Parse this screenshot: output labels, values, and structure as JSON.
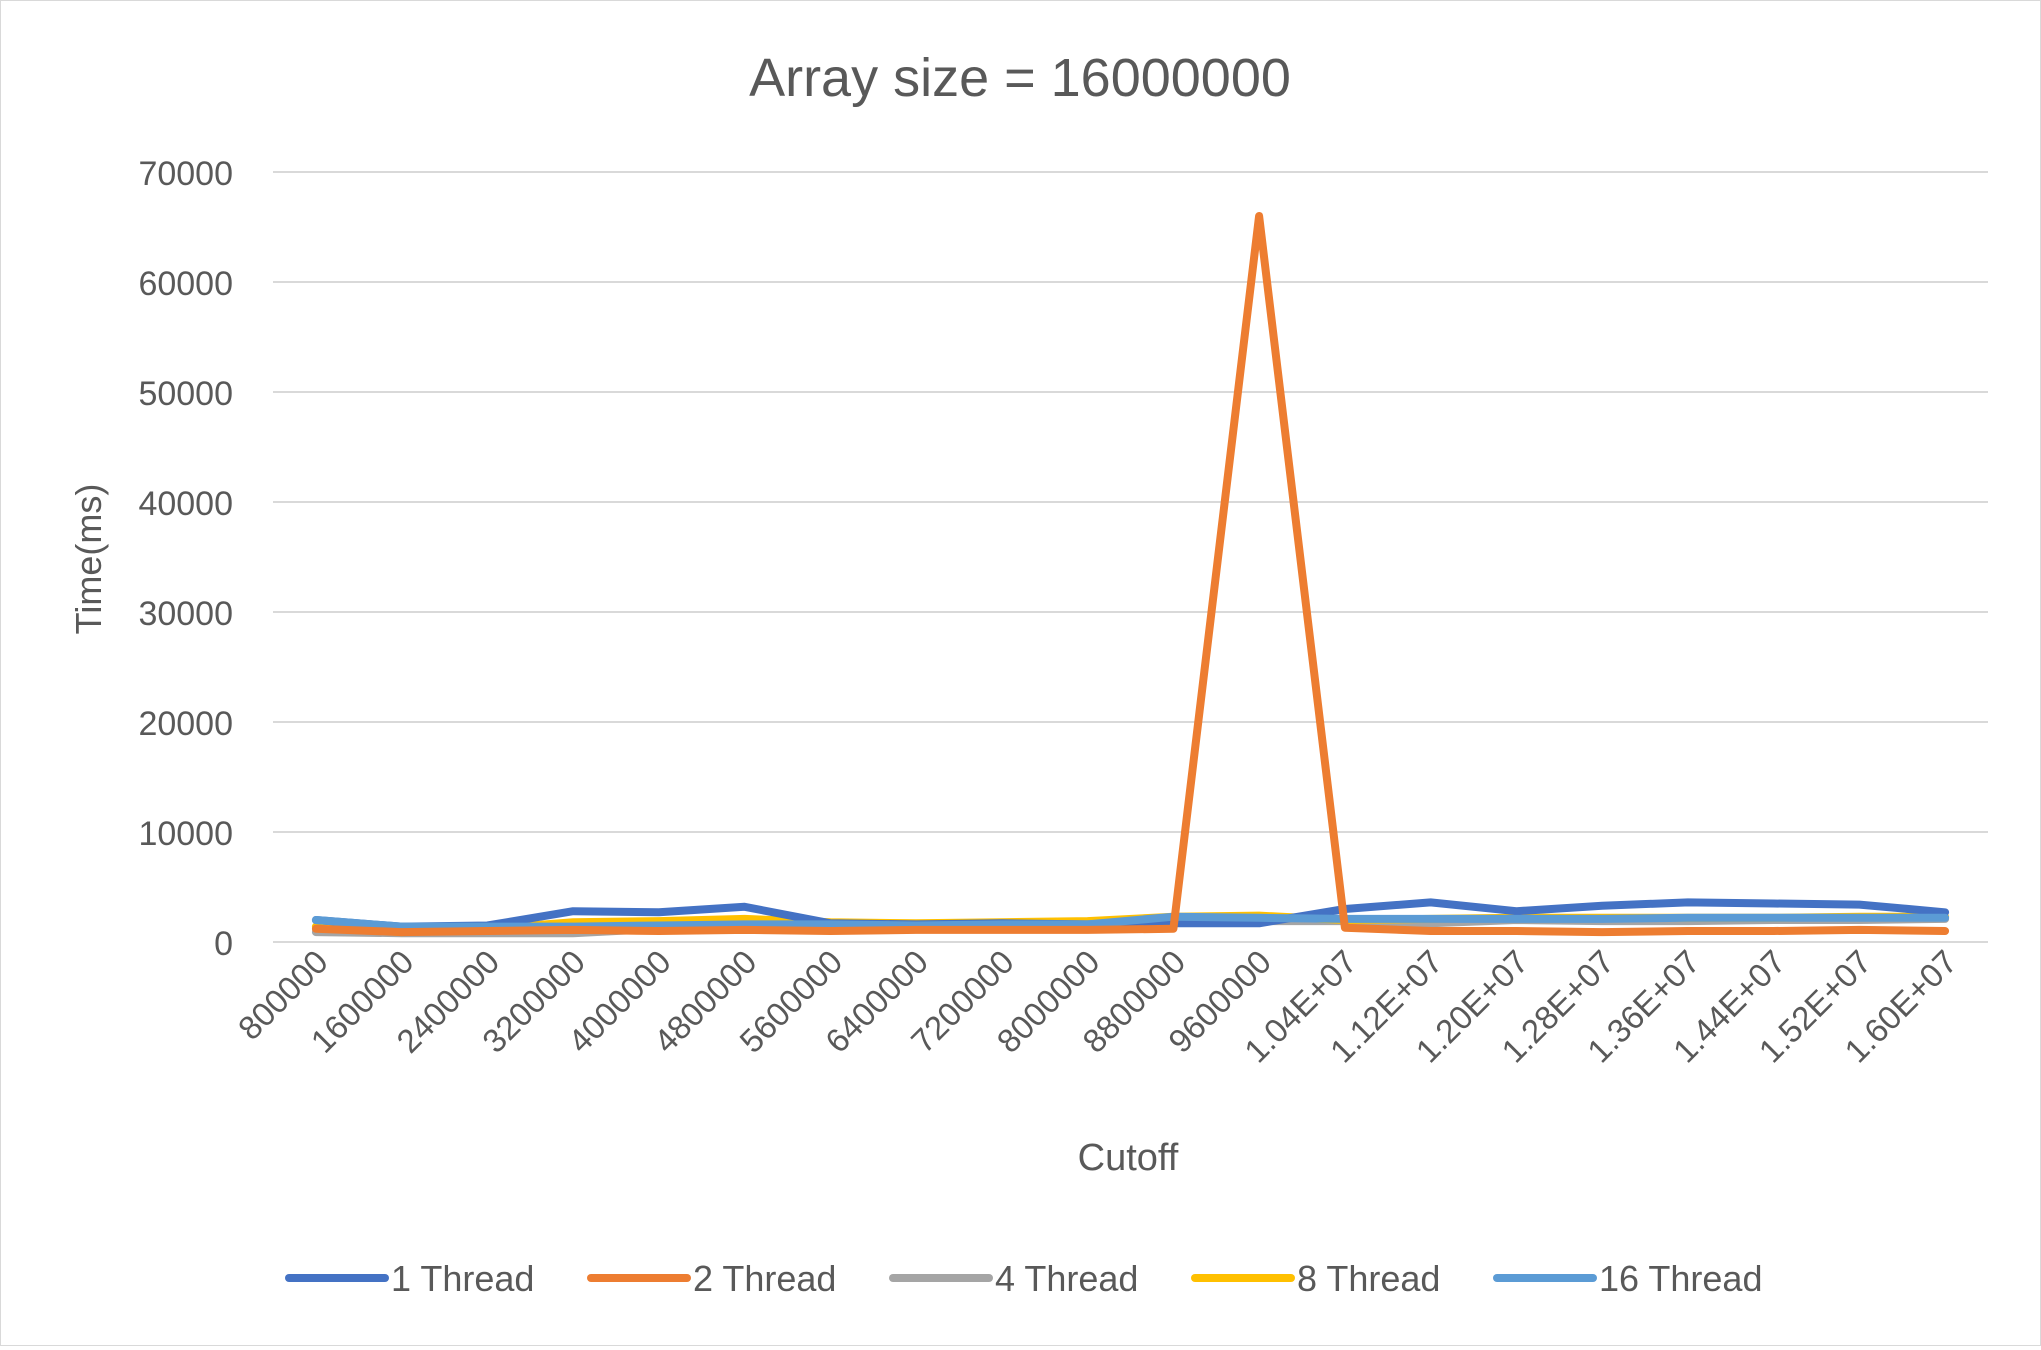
{
  "chart_data": {
    "type": "line",
    "title": "Array size = 16000000",
    "xlabel": "Cutoff",
    "ylabel": "Time(ms)",
    "ylim": [
      0,
      70000
    ],
    "yticks": [
      "0",
      "10000",
      "20000",
      "30000",
      "40000",
      "50000",
      "60000",
      "70000"
    ],
    "ytick_values": [
      0,
      10000,
      20000,
      30000,
      40000,
      50000,
      60000,
      70000
    ],
    "grid": true,
    "legend_position": "bottom",
    "categories": [
      "800000",
      "1600000",
      "2400000",
      "3200000",
      "4000000",
      "4800000",
      "5600000",
      "6400000",
      "7200000",
      "8000000",
      "8800000",
      "9600000",
      "1.04E+07",
      "1.12E+07",
      "1.20E+07",
      "1.28E+07",
      "1.36E+07",
      "1.44E+07",
      "1.52E+07",
      "1.60E+07"
    ],
    "series": [
      {
        "name": "1 Thread",
        "color": "#4472C4",
        "values": [
          2000,
          1400,
          1500,
          2800,
          2700,
          3200,
          1700,
          1600,
          1700,
          1600,
          1700,
          1700,
          3000,
          3600,
          2800,
          3300,
          3600,
          3500,
          3400,
          2700
        ]
      },
      {
        "name": "2 Thread",
        "color": "#ED7D31",
        "values": [
          1200,
          900,
          1000,
          1100,
          1000,
          1100,
          1000,
          1100,
          1100,
          1100,
          1200,
          66000,
          1300,
          1000,
          1000,
          900,
          1000,
          1000,
          1100,
          1000
        ]
      },
      {
        "name": "4 Thread",
        "color": "#A5A5A5",
        "values": [
          900,
          800,
          800,
          800,
          1200,
          1400,
          1400,
          1400,
          1500,
          1500,
          1800,
          1900,
          1900,
          1700,
          2000,
          1900,
          1900,
          2000,
          2000,
          2100
        ]
      },
      {
        "name": "8 Thread",
        "color": "#FFC000",
        "values": [
          1400,
          900,
          1200,
          1800,
          1900,
          2100,
          1800,
          1700,
          1800,
          1900,
          2300,
          2400,
          2000,
          2100,
          2200,
          2200,
          2200,
          2200,
          2300,
          2300
        ]
      },
      {
        "name": "16 Thread",
        "color": "#5B9BD5",
        "values": [
          2000,
          1400,
          1400,
          1400,
          1500,
          1600,
          1600,
          1500,
          1600,
          1600,
          2300,
          2200,
          2100,
          2100,
          2100,
          2100,
          2200,
          2200,
          2200,
          2200
        ]
      }
    ]
  }
}
